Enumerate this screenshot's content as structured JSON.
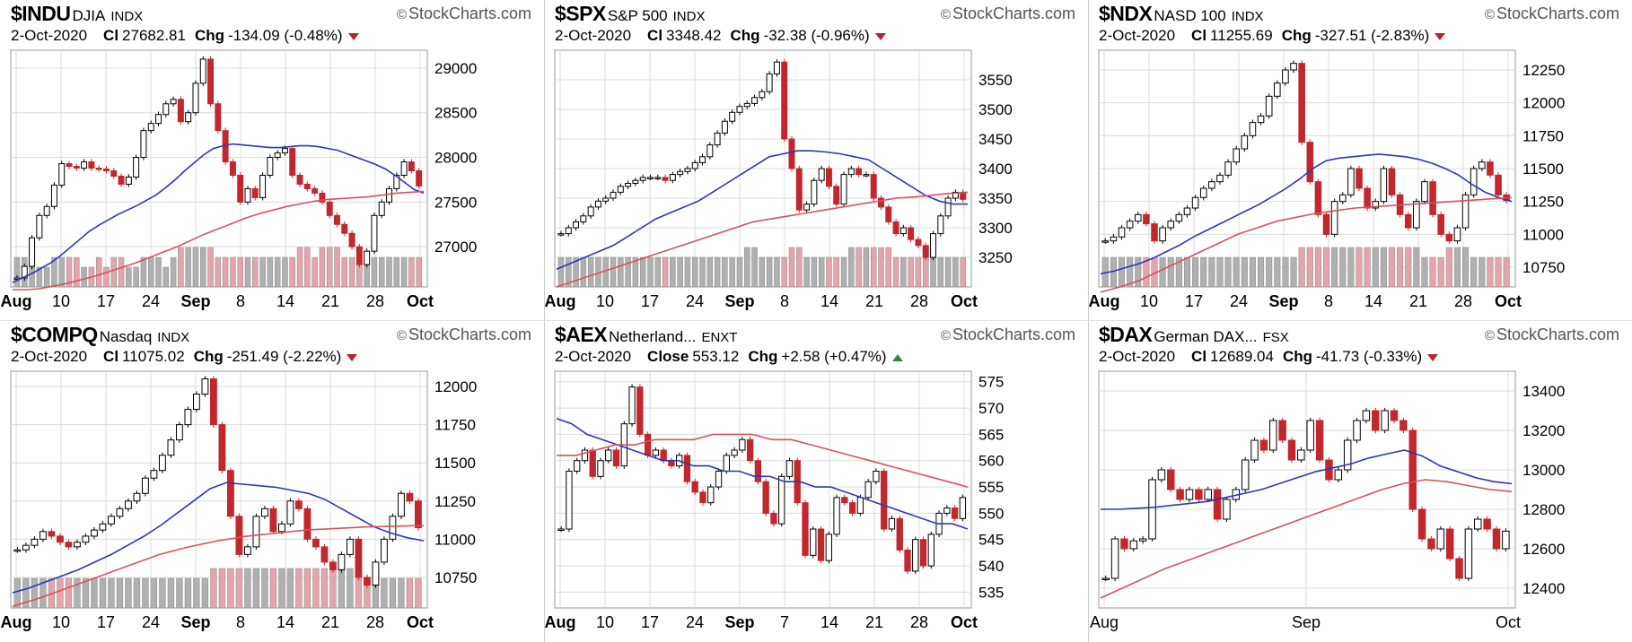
{
  "panels": [
    {
      "symbol": "$INDU",
      "name": "DJIA",
      "exchange": "INDX",
      "watermark": "StockCharts.com",
      "date": "2-Oct-2020",
      "close_label": "Cl",
      "close": "27682.81",
      "chg_label": "Chg",
      "chg": "-134.09 (-0.48%)",
      "direction": "down"
    },
    {
      "symbol": "$SPX",
      "name": "S&P 500",
      "exchange": "INDX",
      "watermark": "StockCharts.com",
      "date": "2-Oct-2020",
      "close_label": "Cl",
      "close": "3348.42",
      "chg_label": "Chg",
      "chg": "-32.38 (-0.96%)",
      "direction": "down"
    },
    {
      "symbol": "$NDX",
      "name": "NASD 100",
      "exchange": "INDX",
      "watermark": "StockCharts.com",
      "date": "2-Oct-2020",
      "close_label": "Cl",
      "close": "11255.69",
      "chg_label": "Chg",
      "chg": "-327.51 (-2.83%)",
      "direction": "down"
    },
    {
      "symbol": "$COMPQ",
      "name": "Nasdaq",
      "exchange": "INDX",
      "watermark": "StockCharts.com",
      "date": "2-Oct-2020",
      "close_label": "Cl",
      "close": "11075.02",
      "chg_label": "Chg",
      "chg": "-251.49 (-2.22%)",
      "direction": "down"
    },
    {
      "symbol": "$AEX",
      "name": "Netherland...",
      "exchange": "ENXT",
      "watermark": "StockCharts.com",
      "date": "2-Oct-2020",
      "close_label": "Close",
      "close": "553.12",
      "chg_label": "Chg",
      "chg": "+2.58 (+0.47%)",
      "direction": "up"
    },
    {
      "symbol": "$DAX",
      "name": "German DAX...",
      "exchange": "FSX",
      "watermark": "StockCharts.com",
      "date": "2-Oct-2020",
      "close_label": "Cl",
      "close": "12689.04",
      "chg_label": "Chg",
      "chg": "-41.73 (-0.33%)",
      "direction": "down"
    }
  ],
  "colors": {
    "up": "#ffffff",
    "down": "#c1272d",
    "ma_fast": "#2b37b8",
    "ma_slow": "#d9515d",
    "volume_up": "#b0b0b0",
    "volume_down": "#e3a4ab",
    "grid": "#dcdcdc"
  },
  "chart_data": [
    {
      "type": "candlestick",
      "title": "$INDU",
      "xticks": [
        "Aug",
        "10",
        "17",
        "24",
        "Sep",
        "8",
        "14",
        "21",
        "28",
        "Oct"
      ],
      "xtick_bold": [
        "Aug",
        "Sep",
        "Oct"
      ],
      "yticks": [
        27000,
        27500,
        28000,
        28500,
        29000
      ],
      "ylim": [
        26550,
        29200
      ],
      "closes": [
        26650,
        26780,
        27100,
        27350,
        27450,
        27690,
        27930,
        27900,
        27880,
        27950,
        27880,
        27870,
        27850,
        27790,
        27700,
        27780,
        28000,
        28300,
        28380,
        28480,
        28600,
        28650,
        28400,
        28500,
        28830,
        29100,
        28600,
        28300,
        27950,
        27800,
        27500,
        27650,
        27550,
        27800,
        28000,
        28050,
        28100,
        27800,
        27700,
        27650,
        27600,
        27500,
        27350,
        27250,
        27150,
        27000,
        26800,
        26950,
        27350,
        27500,
        27650,
        27800,
        27950,
        27850,
        27680
      ],
      "ma_fast": [
        26600,
        26650,
        26700,
        26760,
        26820,
        26900,
        26990,
        27080,
        27170,
        27240,
        27300,
        27360,
        27410,
        27460,
        27520,
        27580,
        27660,
        27750,
        27850,
        27940,
        28030,
        28100,
        28130,
        28150,
        28140,
        28130,
        28120,
        28110,
        28110,
        28120,
        28130,
        28130,
        28120,
        28100,
        28080,
        28040,
        28000,
        27960,
        27920,
        27870,
        27800,
        27720,
        27640,
        27600
      ],
      "ma_slow": [
        26520,
        26520,
        26530,
        26560,
        26590,
        26630,
        26670,
        26720,
        26770,
        26820,
        26880,
        26940,
        27000,
        27070,
        27140,
        27200,
        27260,
        27320,
        27370,
        27410,
        27450,
        27480,
        27510,
        27530,
        27540,
        27550,
        27560,
        27580,
        27600,
        27610,
        27620
      ],
      "volume": [
        3,
        3,
        3,
        2,
        2,
        3,
        3,
        3,
        3,
        2,
        2,
        3,
        2,
        3,
        3,
        2,
        2,
        3,
        3,
        3,
        2,
        3,
        4,
        4,
        4,
        4,
        4,
        3,
        3,
        3,
        3,
        3,
        3,
        3,
        3,
        3,
        3,
        3,
        4,
        4,
        3,
        4,
        4,
        4,
        3,
        3,
        3,
        3,
        3,
        3,
        3,
        3,
        3,
        3,
        3
      ]
    },
    {
      "type": "candlestick",
      "title": "$SPX",
      "xticks": [
        "Aug",
        "10",
        "17",
        "24",
        "Sep",
        "8",
        "14",
        "21",
        "28",
        "Oct"
      ],
      "xtick_bold": [
        "Aug",
        "Sep",
        "Oct"
      ],
      "yticks": [
        3250,
        3300,
        3350,
        3400,
        3450,
        3500,
        3550
      ],
      "ylim": [
        3200,
        3600
      ],
      "closes": [
        3290,
        3300,
        3310,
        3320,
        3335,
        3345,
        3350,
        3360,
        3370,
        3375,
        3380,
        3385,
        3385,
        3385,
        3380,
        3390,
        3395,
        3400,
        3410,
        3420,
        3440,
        3460,
        3480,
        3495,
        3505,
        3510,
        3520,
        3530,
        3560,
        3580,
        3450,
        3400,
        3330,
        3340,
        3380,
        3400,
        3370,
        3340,
        3390,
        3400,
        3390,
        3390,
        3350,
        3335,
        3310,
        3290,
        3300,
        3280,
        3270,
        3250,
        3290,
        3320,
        3350,
        3360,
        3348
      ],
      "ma_fast": [
        3230,
        3240,
        3250,
        3260,
        3270,
        3285,
        3300,
        3315,
        3325,
        3335,
        3345,
        3360,
        3375,
        3390,
        3405,
        3420,
        3425,
        3430,
        3430,
        3428,
        3425,
        3420,
        3415,
        3400,
        3385,
        3370,
        3355,
        3345,
        3340,
        3340
      ],
      "ma_slow": [
        3200,
        3210,
        3220,
        3230,
        3240,
        3250,
        3260,
        3270,
        3280,
        3290,
        3300,
        3310,
        3315,
        3320,
        3325,
        3330,
        3335,
        3340,
        3345,
        3350,
        3352,
        3355,
        3358,
        3360
      ],
      "volume": [
        3,
        3,
        3,
        3,
        3,
        3,
        3,
        3,
        3,
        3,
        3,
        3,
        3,
        3,
        3,
        3,
        3,
        3,
        3,
        3,
        3,
        3,
        3,
        3,
        3,
        4,
        4,
        3,
        3,
        3,
        3,
        4,
        4,
        3,
        3,
        3,
        3,
        3,
        3,
        4,
        4,
        4,
        4,
        4,
        4,
        3,
        3,
        3,
        3,
        3,
        3,
        3,
        3,
        3,
        3
      ]
    },
    {
      "type": "candlestick",
      "title": "$NDX",
      "xticks": [
        "Aug",
        "10",
        "17",
        "24",
        "Sep",
        "8",
        "14",
        "21",
        "28",
        "Oct"
      ],
      "xtick_bold": [
        "Aug",
        "Sep",
        "Oct"
      ],
      "yticks": [
        10750,
        11000,
        11250,
        11500,
        11750,
        12000,
        12250
      ],
      "ylim": [
        10600,
        12400
      ],
      "closes": [
        10950,
        10980,
        11050,
        11100,
        11150,
        11080,
        10950,
        11050,
        11100,
        11150,
        11200,
        11280,
        11350,
        11400,
        11450,
        11550,
        11650,
        11750,
        11850,
        11900,
        12050,
        12150,
        12250,
        12300,
        11700,
        11400,
        11150,
        11000,
        11250,
        11300,
        11500,
        11350,
        11200,
        11250,
        11500,
        11300,
        11150,
        11050,
        11250,
        11400,
        11150,
        11000,
        10950,
        11050,
        11300,
        11500,
        11550,
        11450,
        11300,
        11256
      ],
      "ma_fast": [
        10700,
        10720,
        10750,
        10780,
        10820,
        10870,
        10920,
        10980,
        11030,
        11080,
        11130,
        11180,
        11230,
        11290,
        11350,
        11420,
        11500,
        11560,
        11580,
        11590,
        11600,
        11610,
        11600,
        11590,
        11570,
        11540,
        11500,
        11450,
        11380,
        11320,
        11280,
        11250
      ],
      "ma_slow": [
        10560,
        10600,
        10650,
        10720,
        10790,
        10860,
        10930,
        11000,
        11050,
        11100,
        11130,
        11160,
        11180,
        11200,
        11210,
        11220,
        11230,
        11240,
        11250,
        11260,
        11270,
        11280
      ],
      "volume": [
        3,
        3,
        3,
        3,
        3,
        3,
        3,
        3,
        3,
        3,
        3,
        3,
        3,
        3,
        3,
        3,
        3,
        3,
        3,
        3,
        3,
        3,
        3,
        3,
        4,
        4,
        4,
        4,
        4,
        4,
        4,
        4,
        4,
        4,
        4,
        4,
        4,
        4,
        4,
        3,
        3,
        3,
        4,
        4,
        4,
        3,
        3,
        3,
        3,
        3
      ]
    },
    {
      "type": "candlestick",
      "title": "$COMPQ",
      "xticks": [
        "Aug",
        "10",
        "17",
        "24",
        "Sep",
        "8",
        "14",
        "21",
        "28",
        "Oct"
      ],
      "xtick_bold": [
        "Aug",
        "Sep",
        "Oct"
      ],
      "yticks": [
        10750,
        11000,
        11250,
        11500,
        11750,
        12000
      ],
      "ylim": [
        10550,
        12100
      ],
      "closes": [
        10930,
        10960,
        11000,
        11050,
        11020,
        10980,
        10950,
        10980,
        11020,
        11060,
        11100,
        11150,
        11200,
        11250,
        11300,
        11400,
        11450,
        11550,
        11650,
        11750,
        11850,
        11950,
        12050,
        11750,
        11450,
        11150,
        10900,
        10950,
        11150,
        11200,
        11050,
        11100,
        11250,
        11200,
        11000,
        10950,
        10850,
        10800,
        10900,
        11000,
        10750,
        10700,
        10850,
        11000,
        11150,
        11300,
        11250,
        11075
      ],
      "ma_fast": [
        10650,
        10680,
        10720,
        10760,
        10800,
        10850,
        10900,
        10960,
        11020,
        11090,
        11170,
        11250,
        11330,
        11370,
        11360,
        11350,
        11340,
        11320,
        11300,
        11260,
        11200,
        11140,
        11080,
        11040,
        11010,
        10990
      ],
      "ma_slow": [
        10560,
        10620,
        10690,
        10760,
        10830,
        10900,
        10950,
        10990,
        11020,
        11040,
        11060,
        11070,
        11080,
        11085,
        11090
      ],
      "volume": [
        3,
        3,
        3,
        3,
        3,
        3,
        3,
        3,
        3,
        3,
        3,
        3,
        3,
        3,
        3,
        3,
        3,
        3,
        3,
        3,
        3,
        3,
        3,
        4,
        4,
        4,
        4,
        4,
        4,
        4,
        4,
        4,
        4,
        4,
        4,
        4,
        4,
        4,
        4,
        4,
        3,
        3,
        3,
        3,
        3,
        3,
        3,
        3
      ]
    },
    {
      "type": "candlestick",
      "title": "$AEX",
      "xticks": [
        "Aug",
        "10",
        "17",
        "24",
        "Sep",
        "7",
        "14",
        "21",
        "28",
        "Oct"
      ],
      "xtick_bold": [
        "Aug",
        "Sep",
        "Oct"
      ],
      "yticks": [
        535,
        540,
        545,
        550,
        555,
        560,
        565,
        570,
        575
      ],
      "ylim": [
        532,
        577
      ],
      "closes": [
        547,
        558,
        560,
        562,
        557,
        560,
        562,
        559,
        567,
        574,
        565,
        561,
        562,
        560,
        559,
        561,
        556,
        554,
        552,
        555,
        558,
        561,
        562,
        564,
        560,
        556,
        550,
        548,
        557,
        560,
        552,
        542,
        547,
        541,
        546,
        553,
        552,
        550,
        553,
        556,
        558,
        547,
        549,
        543,
        539,
        545,
        540,
        546,
        550,
        551,
        549,
        553
      ],
      "ma_fast": [
        568,
        567,
        565,
        564,
        563,
        562,
        561,
        560,
        560,
        559,
        559,
        558,
        558,
        557,
        557,
        556,
        556,
        555,
        555,
        554,
        553,
        552,
        551,
        550,
        549,
        548,
        548,
        547
      ],
      "ma_slow": [
        561,
        561,
        562,
        563,
        563,
        564,
        564,
        564,
        565,
        565,
        565,
        564,
        564,
        563,
        562,
        561,
        560,
        559,
        558,
        557,
        556,
        555
      ],
      "volume": []
    },
    {
      "type": "candlestick",
      "title": "$DAX",
      "xticks": [
        "Aug",
        "Sep",
        "Oct"
      ],
      "xtick_bold": [],
      "yticks": [
        12400,
        12600,
        12800,
        13000,
        13200,
        13400
      ],
      "ylim": [
        12300,
        13500
      ],
      "closes": [
        12450,
        12650,
        12600,
        12640,
        12650,
        12950,
        13000,
        12900,
        12850,
        12900,
        12850,
        12900,
        12750,
        12850,
        12900,
        13050,
        13150,
        13100,
        13250,
        13150,
        13050,
        13100,
        13250,
        13050,
        12950,
        13000,
        13150,
        13250,
        13300,
        13200,
        13300,
        13250,
        13200,
        12800,
        12650,
        12600,
        12700,
        12550,
        12450,
        12700,
        12750,
        12700,
        12600,
        12689
      ],
      "ma_fast": [
        12800,
        12800,
        12805,
        12810,
        12820,
        12830,
        12840,
        12860,
        12880,
        12900,
        12930,
        12960,
        12990,
        13010,
        13030,
        13060,
        13080,
        13100,
        13070,
        13020,
        12990,
        12960,
        12940,
        12930
      ],
      "ma_slow": [
        12350,
        12400,
        12450,
        12500,
        12540,
        12580,
        12620,
        12660,
        12700,
        12740,
        12780,
        12820,
        12860,
        12900,
        12930,
        12950,
        12940,
        12920,
        12900,
        12890
      ],
      "volume": []
    }
  ]
}
